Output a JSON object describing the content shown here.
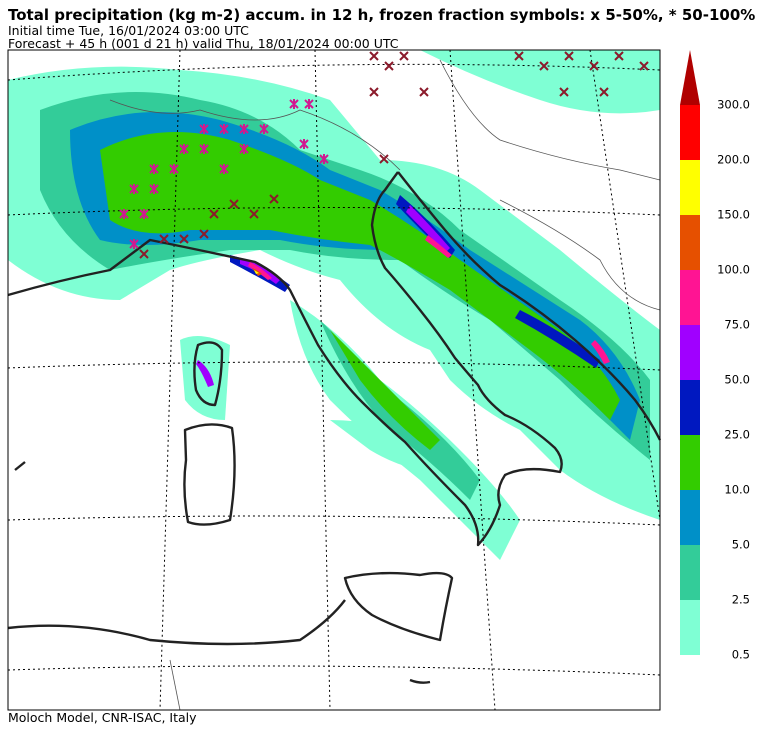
{
  "title": "Total precipitation (kg m-2) accum. in 12 h, frozen fraction symbols: x 5-50%, * 50-100%",
  "initial_time": "Initial time  Tue, 16/01/2024  03:00 UTC",
  "forecast": "Forecast  +  45 h  (001 d 21 h)  valid Thu, 18/01/2024 00:00 UTC",
  "footer": "Moloch Model, CNR-ISAC, Italy",
  "colorbar": {
    "levels": [
      "0.5",
      "2.5",
      "5.0",
      "10.0",
      "25.0",
      "50.0",
      "75.0",
      "100.0",
      "150.0",
      "200.0",
      "300.0"
    ],
    "colors": [
      "#7fffd4",
      "#33cc99",
      "#0090c8",
      "#33cc00",
      "#0018c0",
      "#a000ff",
      "#ff1493",
      "#e65000",
      "#ffff00",
      "#ff0000"
    ],
    "extend_color": "#b00000"
  }
}
